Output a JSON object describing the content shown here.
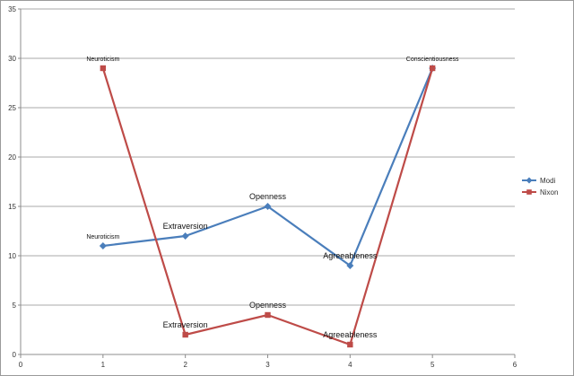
{
  "chart_data": {
    "type": "line",
    "title": "",
    "xlabel": "",
    "ylabel": "",
    "xlim": [
      0,
      6
    ],
    "ylim": [
      0,
      35
    ],
    "x_ticks": [
      0,
      1,
      2,
      3,
      4,
      5,
      6
    ],
    "y_ticks": [
      0,
      5,
      10,
      15,
      20,
      25,
      30,
      35
    ],
    "grid": "horizontal",
    "legend_position": "right",
    "series": [
      {
        "name": "Modi",
        "color": "#4a7ebb",
        "marker": "diamond",
        "points": [
          {
            "x": 1,
            "y": 11,
            "label": "Neuroticism",
            "label_size": "small"
          },
          {
            "x": 2,
            "y": 12,
            "label": "Extraversion",
            "label_size": "big"
          },
          {
            "x": 3,
            "y": 15,
            "label": "Openness",
            "label_size": "big"
          },
          {
            "x": 4,
            "y": 9,
            "label": "Agreeableness",
            "label_size": "big"
          },
          {
            "x": 5,
            "y": 29,
            "label": "Conscientiousness",
            "label_size": "small"
          }
        ]
      },
      {
        "name": "Nixon",
        "color": "#be4b48",
        "marker": "square",
        "points": [
          {
            "x": 1,
            "y": 29,
            "label": "Neuroticism",
            "label_size": "small"
          },
          {
            "x": 2,
            "y": 2,
            "label": "Extraversion",
            "label_size": "big"
          },
          {
            "x": 3,
            "y": 4,
            "label": "Openness",
            "label_size": "big"
          },
          {
            "x": 4,
            "y": 1,
            "label": "Agreeableness",
            "label_size": "big"
          },
          {
            "x": 5,
            "y": 29,
            "label": "",
            "label_size": "small"
          }
        ]
      }
    ]
  }
}
